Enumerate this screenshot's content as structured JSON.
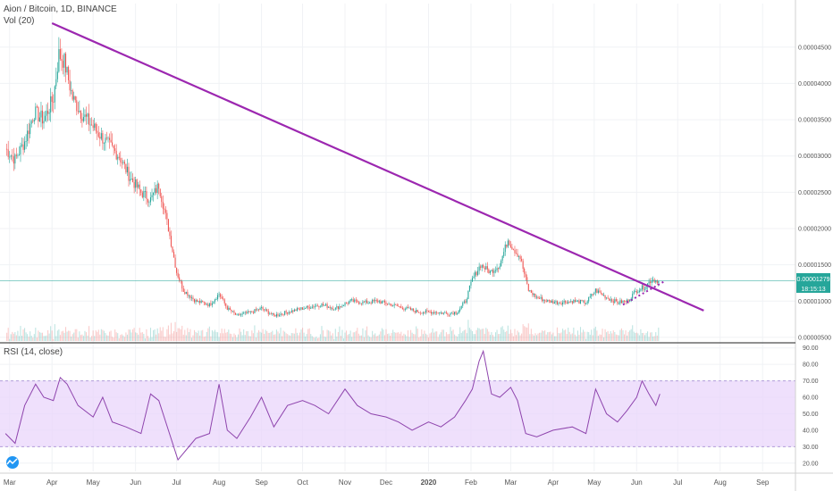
{
  "chart_data": [
    {
      "type": "candlestick",
      "title": "Aion / Bitcoin, 1D, BINANCE",
      "volume_label": "Vol (20)",
      "ylim": [
        4.5e-06,
        5.1e-05
      ],
      "y_ticks": [
        "0.00000500",
        "0.00001000",
        "0.00001500",
        "0.00002000",
        "0.00002500",
        "0.00003000",
        "0.00003500",
        "0.00004000",
        "0.00004500"
      ],
      "y_tick_values": [
        5e-06,
        1e-05,
        1.5e-05,
        2e-05,
        2.5e-05,
        3e-05,
        3.5e-05,
        4e-05,
        4.5e-05
      ],
      "x_ticks": [
        "Mar",
        "Apr",
        "May",
        "Jun",
        "Jul",
        "Aug",
        "Sep",
        "Oct",
        "Nov",
        "Dec",
        "2020",
        "Feb",
        "Mar",
        "Apr",
        "May",
        "Jun",
        "Jul",
        "Aug",
        "Sep"
      ],
      "x_tick_dates": [
        "2019-03-01",
        "2019-04-01",
        "2019-05-01",
        "2019-06-01",
        "2019-07-01",
        "2019-08-01",
        "2019-09-01",
        "2019-10-01",
        "2019-11-01",
        "2019-12-01",
        "2020-01-01",
        "2020-02-01",
        "2020-03-01",
        "2020-04-01",
        "2020-05-01",
        "2020-06-01",
        "2020-07-01",
        "2020-08-01",
        "2020-09-01"
      ],
      "last_price_label": "0.00001279",
      "last_price": 1.279e-05,
      "countdown_label": "18:15:13",
      "close_path": [
        [
          "2019-02-26",
          3.1e-05
        ],
        [
          "2019-03-05",
          2.95e-05
        ],
        [
          "2019-03-12",
          3.2e-05
        ],
        [
          "2019-03-19",
          3.6e-05
        ],
        [
          "2019-03-26",
          3.5e-05
        ],
        [
          "2019-04-02",
          3.8e-05
        ],
        [
          "2019-04-06",
          4.4e-05
        ],
        [
          "2019-04-10",
          4.3e-05
        ],
        [
          "2019-04-16",
          3.8e-05
        ],
        [
          "2019-04-22",
          3.6e-05
        ],
        [
          "2019-05-01",
          3.4e-05
        ],
        [
          "2019-05-10",
          3.2e-05
        ],
        [
          "2019-05-20",
          3e-05
        ],
        [
          "2019-05-28",
          2.7e-05
        ],
        [
          "2019-06-05",
          2.5e-05
        ],
        [
          "2019-06-12",
          2.4e-05
        ],
        [
          "2019-06-18",
          2.6e-05
        ],
        [
          "2019-06-25",
          2e-05
        ],
        [
          "2019-07-01",
          1.4e-05
        ],
        [
          "2019-07-06",
          1.15e-05
        ],
        [
          "2019-07-15",
          1e-05
        ],
        [
          "2019-07-25",
          9.5e-06
        ],
        [
          "2019-08-01",
          1.1e-05
        ],
        [
          "2019-08-07",
          9e-06
        ],
        [
          "2019-08-14",
          8e-06
        ],
        [
          "2019-08-25",
          8.5e-06
        ],
        [
          "2019-09-01",
          9e-06
        ],
        [
          "2019-09-10",
          8e-06
        ],
        [
          "2019-09-20",
          8.5e-06
        ],
        [
          "2019-10-01",
          9e-06
        ],
        [
          "2019-10-15",
          9.5e-06
        ],
        [
          "2019-10-25",
          9e-06
        ],
        [
          "2019-11-05",
          1e-05
        ],
        [
          "2019-11-15",
          9.8e-06
        ],
        [
          "2019-11-25",
          1e-05
        ],
        [
          "2019-12-05",
          9.5e-06
        ],
        [
          "2019-12-15",
          9e-06
        ],
        [
          "2019-12-25",
          8.5e-06
        ],
        [
          "2020-01-05",
          8.5e-06
        ],
        [
          "2020-01-15",
          8.3e-06
        ],
        [
          "2020-01-22",
          8.5e-06
        ],
        [
          "2020-01-28",
          1e-05
        ],
        [
          "2020-02-02",
          1.3e-05
        ],
        [
          "2020-02-08",
          1.5e-05
        ],
        [
          "2020-02-15",
          1.4e-05
        ],
        [
          "2020-02-22",
          1.5e-05
        ],
        [
          "2020-02-28",
          1.85e-05
        ],
        [
          "2020-03-02",
          1.75e-05
        ],
        [
          "2020-03-08",
          1.6e-05
        ],
        [
          "2020-03-14",
          1.15e-05
        ],
        [
          "2020-03-20",
          1.05e-05
        ],
        [
          "2020-03-28",
          1e-05
        ],
        [
          "2020-04-05",
          9.8e-06
        ],
        [
          "2020-04-15",
          1e-05
        ],
        [
          "2020-04-25",
          9.8e-06
        ],
        [
          "2020-05-02",
          1.15e-05
        ],
        [
          "2020-05-10",
          1.05e-05
        ],
        [
          "2020-05-18",
          9.8e-06
        ],
        [
          "2020-05-25",
          1e-05
        ],
        [
          "2020-06-01",
          1.15e-05
        ],
        [
          "2020-06-07",
          1.2e-05
        ],
        [
          "2020-06-12",
          1.3e-05
        ],
        [
          "2020-06-17",
          1.28e-05
        ]
      ],
      "trendline": {
        "label": "descending trendline",
        "color": "#9c27b0",
        "from": [
          "2019-04-01",
          4.83e-05
        ],
        "to": [
          "2020-07-20",
          8.7e-06
        ]
      },
      "support_line": {
        "label": "dotted support",
        "color": "#9c27b0",
        "from": [
          "2020-05-22",
          9.5e-06
        ],
        "to": [
          "2020-06-22",
          1.28e-05
        ]
      },
      "colors": {
        "up": "#26a69a",
        "down": "#ef5350",
        "trendline": "#9c27b0",
        "price_line": "#26a69a"
      }
    },
    {
      "type": "line",
      "title": "RSI (14, close)",
      "ylim": [
        15,
        92
      ],
      "y_ticks": [
        "20.00",
        "30.00",
        "40.00",
        "50.00",
        "60.00",
        "70.00",
        "80.00",
        "90.00"
      ],
      "y_tick_values": [
        20,
        30,
        40,
        50,
        60,
        70,
        80,
        90
      ],
      "band": [
        30,
        70
      ],
      "band_color": "#e9d5fb",
      "line_color": "#8e44ad",
      "series": [
        [
          "2019-02-26",
          38
        ],
        [
          "2019-03-05",
          32
        ],
        [
          "2019-03-12",
          55
        ],
        [
          "2019-03-20",
          68
        ],
        [
          "2019-03-26",
          60
        ],
        [
          "2019-04-02",
          58
        ],
        [
          "2019-04-07",
          72
        ],
        [
          "2019-04-12",
          68
        ],
        [
          "2019-04-20",
          55
        ],
        [
          "2019-05-01",
          48
        ],
        [
          "2019-05-08",
          60
        ],
        [
          "2019-05-15",
          45
        ],
        [
          "2019-05-25",
          42
        ],
        [
          "2019-06-05",
          38
        ],
        [
          "2019-06-12",
          62
        ],
        [
          "2019-06-18",
          58
        ],
        [
          "2019-06-25",
          40
        ],
        [
          "2019-07-02",
          22
        ],
        [
          "2019-07-08",
          28
        ],
        [
          "2019-07-15",
          35
        ],
        [
          "2019-07-25",
          38
        ],
        [
          "2019-08-01",
          68
        ],
        [
          "2019-08-07",
          40
        ],
        [
          "2019-08-14",
          35
        ],
        [
          "2019-08-24",
          48
        ],
        [
          "2019-09-01",
          60
        ],
        [
          "2019-09-10",
          42
        ],
        [
          "2019-09-20",
          55
        ],
        [
          "2019-10-01",
          58
        ],
        [
          "2019-10-10",
          55
        ],
        [
          "2019-10-20",
          50
        ],
        [
          "2019-11-01",
          65
        ],
        [
          "2019-11-10",
          55
        ],
        [
          "2019-11-20",
          50
        ],
        [
          "2019-12-01",
          48
        ],
        [
          "2019-12-10",
          45
        ],
        [
          "2019-12-20",
          40
        ],
        [
          "2020-01-01",
          45
        ],
        [
          "2020-01-10",
          42
        ],
        [
          "2020-01-20",
          48
        ],
        [
          "2020-01-28",
          58
        ],
        [
          "2020-02-02",
          65
        ],
        [
          "2020-02-07",
          82
        ],
        [
          "2020-02-10",
          88
        ],
        [
          "2020-02-16",
          62
        ],
        [
          "2020-02-22",
          60
        ],
        [
          "2020-03-01",
          66
        ],
        [
          "2020-03-06",
          58
        ],
        [
          "2020-03-12",
          38
        ],
        [
          "2020-03-20",
          36
        ],
        [
          "2020-04-01",
          40
        ],
        [
          "2020-04-15",
          42
        ],
        [
          "2020-04-25",
          38
        ],
        [
          "2020-05-02",
          65
        ],
        [
          "2020-05-10",
          50
        ],
        [
          "2020-05-18",
          45
        ],
        [
          "2020-05-25",
          52
        ],
        [
          "2020-06-01",
          60
        ],
        [
          "2020-06-05",
          70
        ],
        [
          "2020-06-10",
          62
        ],
        [
          "2020-06-15",
          55
        ],
        [
          "2020-06-18",
          62
        ]
      ]
    }
  ]
}
